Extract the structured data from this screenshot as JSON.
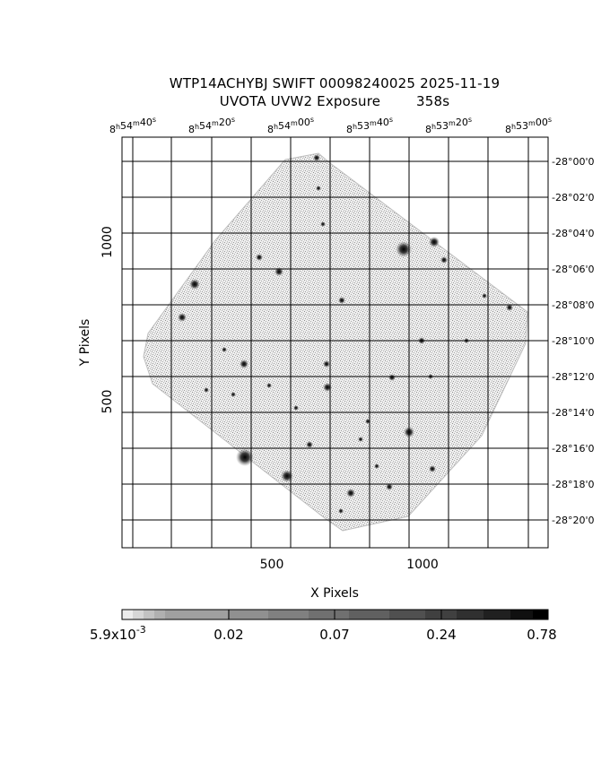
{
  "header": {
    "line1": "WTP14ACHYBJ SWIFT 00098240025 2025-11-19",
    "line2_label": "UVOTA UVW2 Exposure",
    "line2_value": "358s"
  },
  "axes": {
    "xlabel": "X Pixels",
    "ylabel": "Y Pixels",
    "x_ticks": [
      "500",
      "1000"
    ],
    "y_ticks": [
      "500",
      "1000"
    ]
  },
  "ra_labels": [
    {
      "h": "8",
      "m": "54",
      "s": "40"
    },
    {
      "h": "8",
      "m": "54",
      "s": "20"
    },
    {
      "h": "8",
      "m": "54",
      "s": "00"
    },
    {
      "h": "8",
      "m": "53",
      "s": "40"
    },
    {
      "h": "8",
      "m": "53",
      "s": "20"
    },
    {
      "h": "8",
      "m": "53",
      "s": "00"
    }
  ],
  "dec_labels": [
    "-28°00'0",
    "-28°02'0",
    "-28°04'0",
    "-28°06'0",
    "-28°08'0",
    "-28°10'0",
    "-28°12'0",
    "-28°14'0",
    "-28°16'0",
    "-28°18'0",
    "-28°20'0"
  ],
  "colorbar": {
    "min_base": "5.9x10",
    "min_exp": "-3",
    "labels": [
      "0.02",
      "0.07",
      "0.24",
      "0.78"
    ]
  }
}
